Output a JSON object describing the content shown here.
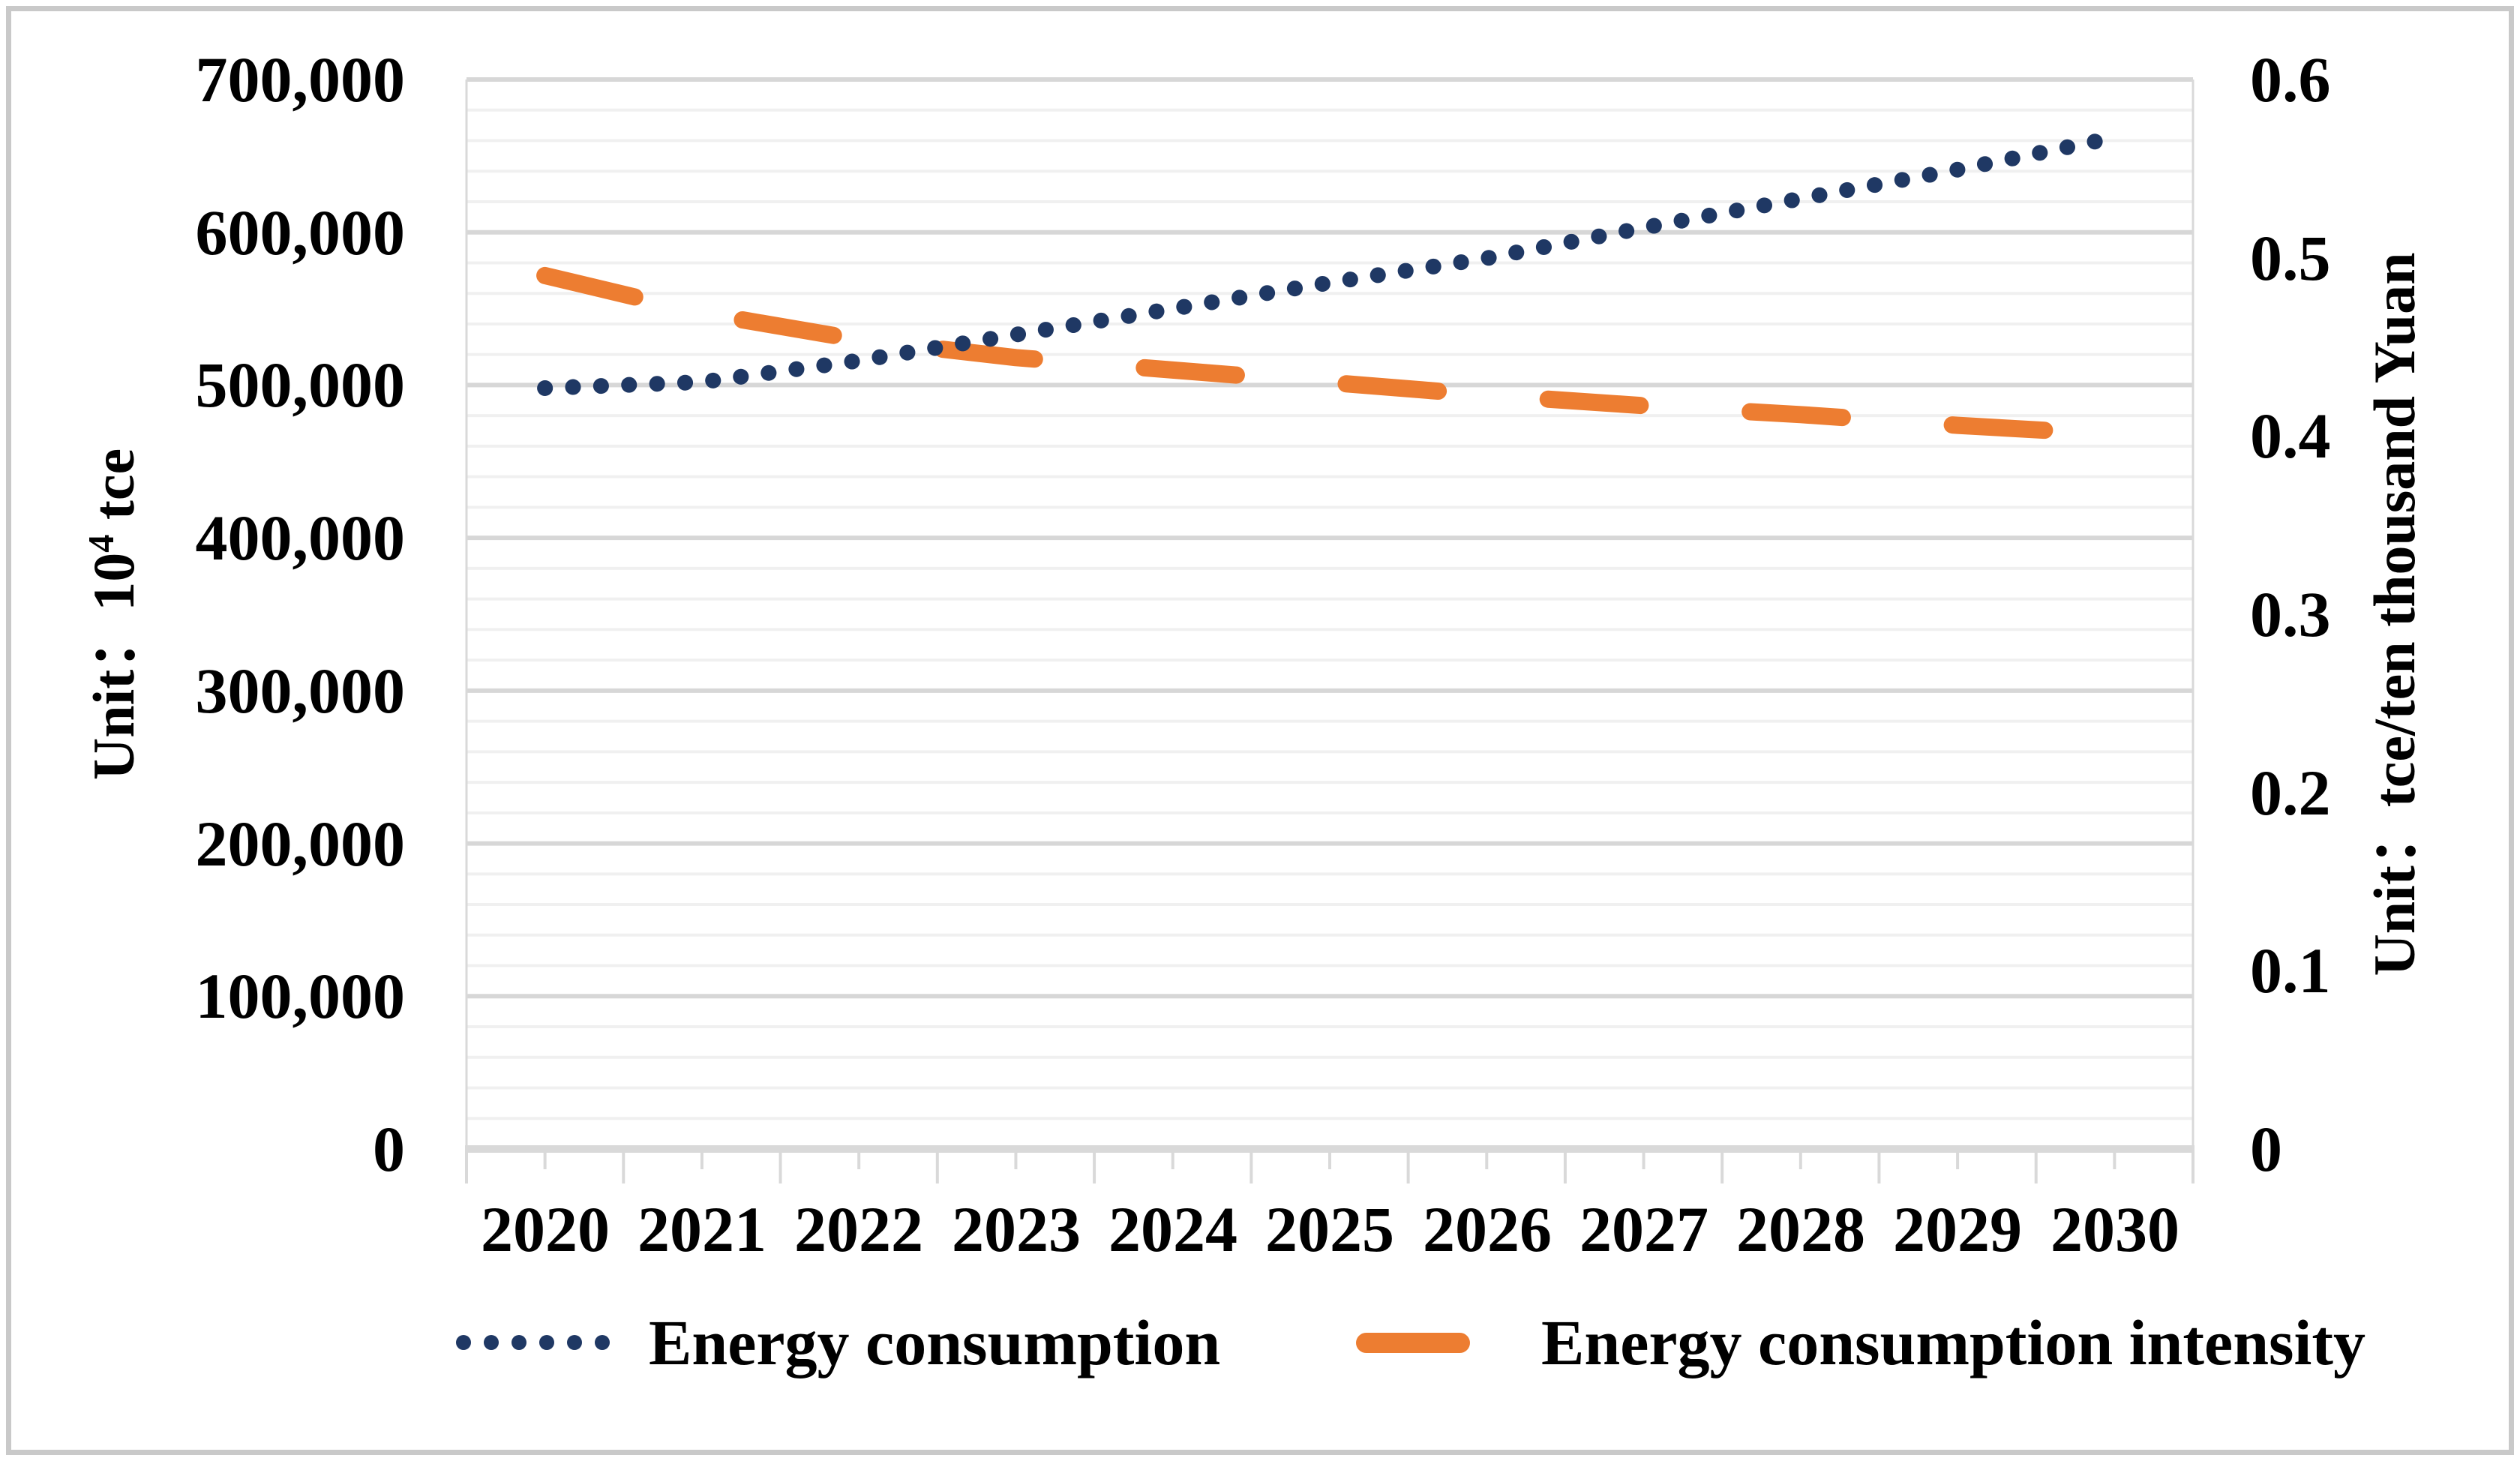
{
  "figure": {
    "background": "#ffffff",
    "border_color": "#c9c9c9"
  },
  "chart_data": {
    "type": "line",
    "categories": [
      "2020",
      "2021",
      "2022",
      "2023",
      "2024",
      "2025",
      "2026",
      "2027",
      "2028",
      "2029",
      "2030"
    ],
    "series": [
      {
        "name": "Energy consumption",
        "axis": "left",
        "style": "dotted",
        "color": "#1f3864",
        "values": [
          498000,
          502000,
          516000,
          533000,
          550000,
          567000,
          583000,
          603000,
          622000,
          641000,
          662000
        ]
      },
      {
        "name": "Energy consumption intensity",
        "axis": "right",
        "style": "dashed",
        "color": "#ed7d31",
        "values": [
          0.49,
          0.469,
          0.454,
          0.444,
          0.437,
          0.43,
          0.423,
          0.417,
          0.412,
          0.406,
          0.401
        ]
      }
    ],
    "left_axis": {
      "title": "Unit：10⁴ tce",
      "title_prefix": "Unit：10",
      "title_sup": "4",
      "title_suffix": " tce",
      "min": 0,
      "max": 700000,
      "major_unit": 100000,
      "minor_unit": 20000,
      "tick_labels": [
        "700,000",
        "600,000",
        "500,000",
        "400,000",
        "300,000",
        "200,000",
        "100,000",
        "0"
      ]
    },
    "right_axis": {
      "title": "Unit：tce/ten thousand Yuan",
      "min": 0,
      "max": 0.6,
      "major_unit": 0.1,
      "tick_labels": [
        "0.6",
        "0.5",
        "0.4",
        "0.3",
        "0.2",
        "0.1",
        "0"
      ]
    },
    "grid": {
      "major": true,
      "minor": true
    },
    "legend_position": "bottom"
  },
  "legend": {
    "items": [
      {
        "label": "Energy consumption",
        "marker": "dotted",
        "color": "#1f3864"
      },
      {
        "label": "Energy consumption intensity",
        "marker": "dash",
        "color": "#ed7d31"
      }
    ]
  }
}
